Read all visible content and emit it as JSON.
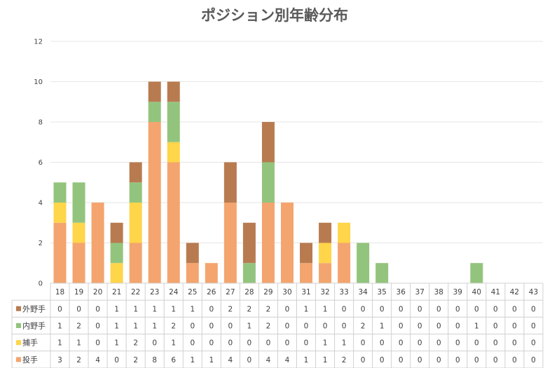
{
  "chart_data": {
    "type": "bar",
    "stacked": true,
    "title": "ポジション別年齢分布",
    "xlabel": "",
    "ylabel": "",
    "ylim": [
      0,
      12
    ],
    "yticks": [
      0,
      2,
      4,
      6,
      8,
      10,
      12
    ],
    "grid": true,
    "legend": "data-table",
    "categories": [
      "18",
      "19",
      "20",
      "21",
      "22",
      "23",
      "24",
      "25",
      "26",
      "27",
      "28",
      "29",
      "30",
      "31",
      "32",
      "33",
      "34",
      "35",
      "36",
      "37",
      "38",
      "39",
      "40",
      "41",
      "42",
      "43"
    ],
    "series": [
      {
        "name": "投手",
        "color": "#F4A46E",
        "values": [
          3,
          2,
          4,
          0,
          2,
          8,
          6,
          1,
          1,
          4,
          0,
          4,
          4,
          1,
          1,
          2,
          0,
          0,
          0,
          0,
          0,
          0,
          0,
          0,
          0,
          0
        ]
      },
      {
        "name": "捕手",
        "color": "#FFD54A",
        "values": [
          1,
          1,
          0,
          1,
          2,
          0,
          1,
          0,
          0,
          0,
          0,
          0,
          0,
          0,
          1,
          1,
          0,
          0,
          0,
          0,
          0,
          0,
          0,
          0,
          0,
          0
        ]
      },
      {
        "name": "内野手",
        "color": "#93C47D",
        "values": [
          1,
          2,
          0,
          1,
          1,
          1,
          2,
          0,
          0,
          0,
          1,
          2,
          0,
          0,
          0,
          0,
          2,
          1,
          0,
          0,
          0,
          0,
          1,
          0,
          0,
          0
        ]
      },
      {
        "name": "外野手",
        "color": "#B87B50",
        "values": [
          0,
          0,
          0,
          1,
          1,
          1,
          1,
          1,
          0,
          2,
          2,
          2,
          0,
          1,
          1,
          0,
          0,
          0,
          0,
          0,
          0,
          0,
          0,
          0,
          0,
          0
        ]
      }
    ],
    "table_rows_order": [
      "外野手",
      "内野手",
      "捕手",
      "投手"
    ]
  }
}
